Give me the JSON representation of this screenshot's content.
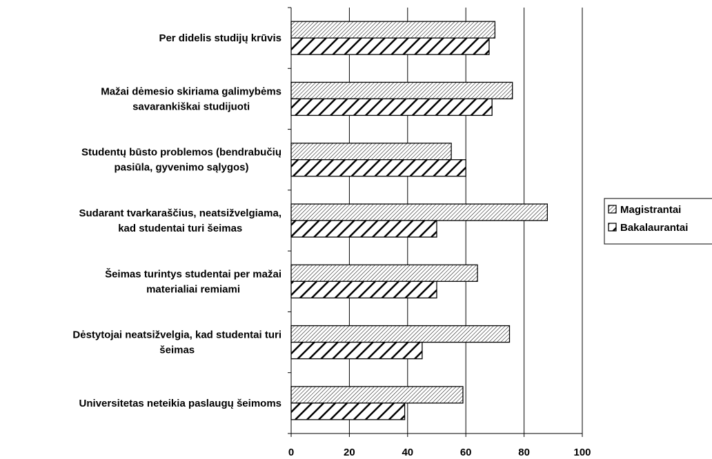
{
  "chart_data": {
    "type": "bar",
    "orientation": "horizontal",
    "categories": [
      [
        "Per didelis studijų krūvis"
      ],
      [
        "Mažai dėmesio skiriama galimybėms",
        "savarankiškai studijuoti"
      ],
      [
        "Studentų būsto problemos (bendrabučių",
        "pasiūla, gyvenimo sąlygos)"
      ],
      [
        "Sudarant tvarkaraščius, neatsižvelgiama,",
        "kad studentai turi šeimas"
      ],
      [
        "Šeimas turintys studentai per mažai",
        "materialiai remiami"
      ],
      [
        "Dėstytojai neatsižvelgia, kad studentai turi",
        "šeimas"
      ],
      [
        "Universitetas neteikia paslaugų šeimoms"
      ]
    ],
    "series": [
      {
        "name": "Magistrantai",
        "values": [
          70,
          76,
          55,
          88,
          64,
          75,
          59
        ]
      },
      {
        "name": "Bakalaurantai",
        "values": [
          68,
          69,
          60,
          50,
          50,
          45,
          39
        ]
      }
    ],
    "xlim": [
      0,
      100
    ],
    "xticks": [
      "0",
      "20",
      "40",
      "60",
      "80",
      "100"
    ],
    "grid": true,
    "legend_position": "right",
    "colors": {
      "bar_fill": "#ffffff",
      "ink": "#000000",
      "grid": "#000000"
    }
  }
}
